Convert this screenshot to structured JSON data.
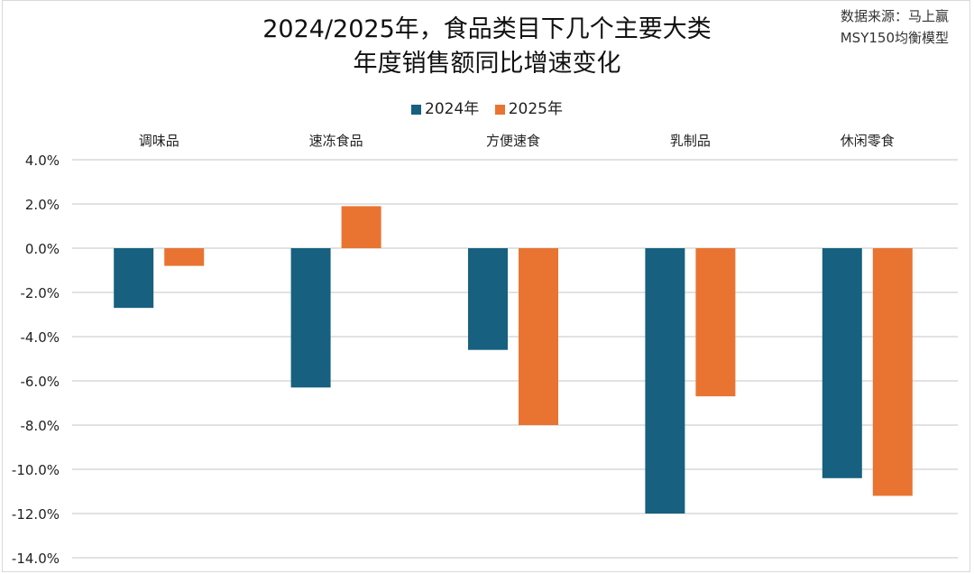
{
  "chart_data": {
    "type": "bar",
    "title": [
      "2024/2025年，食品类目下几个主要大类",
      "年度销售额同比增速变化"
    ],
    "source": [
      "数据来源：马上赢",
      "MSY150均衡模型"
    ],
    "categories": [
      "调味品",
      "速冻食品",
      "方便速食",
      "乳制品",
      "休闲零食"
    ],
    "series": [
      {
        "name": "2024年",
        "color": "#17607f",
        "values": [
          -2.7,
          -6.3,
          -4.6,
          -12.0,
          -10.4
        ]
      },
      {
        "name": "2025年",
        "color": "#e97432",
        "values": [
          -0.8,
          1.9,
          -8.0,
          -6.7,
          -11.2
        ]
      }
    ],
    "ylim": [
      -14,
      4
    ],
    "yticks": [
      "4.0%",
      "2.0%",
      "0.0%",
      "-2.0%",
      "-4.0%",
      "-6.0%",
      "-8.0%",
      "-10.0%",
      "-12.0%",
      "-14.0%"
    ],
    "unit": "%",
    "grid": true,
    "legend": "top",
    "category_labels_position": "top"
  }
}
